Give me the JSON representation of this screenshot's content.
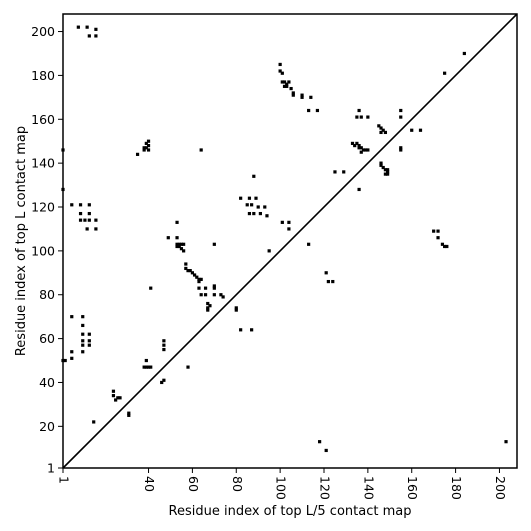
{
  "chart_data": {
    "type": "scatter",
    "xlabel": "Residue index of top L/5 contact map",
    "ylabel": "Residue index of top L contact map",
    "xlim": [
      1,
      208
    ],
    "ylim": [
      1,
      208
    ],
    "x_ticks": [
      1,
      40,
      60,
      80,
      100,
      120,
      140,
      160,
      180,
      200
    ],
    "y_ticks": [
      1,
      20,
      40,
      60,
      80,
      100,
      120,
      140,
      160,
      180,
      200
    ],
    "x_tick_labels": [
      "1",
      "40",
      "60",
      "80",
      "100",
      "120",
      "140",
      "160",
      "180",
      "200"
    ],
    "y_tick_labels": [
      "1",
      "20",
      "40",
      "60",
      "80",
      "100",
      "120",
      "140",
      "160",
      "180",
      "200"
    ],
    "grid": false,
    "diagonal": [
      [
        1,
        1
      ],
      [
        208,
        208
      ]
    ],
    "marker": "square",
    "marker_color": "#000000",
    "line_color": "#000000",
    "points": [
      [
        8,
        202
      ],
      [
        12,
        202
      ],
      [
        13,
        198
      ],
      [
        16,
        198
      ],
      [
        16,
        201
      ],
      [
        1,
        146
      ],
      [
        1,
        128
      ],
      [
        5,
        121
      ],
      [
        9,
        121
      ],
      [
        13,
        121
      ],
      [
        9,
        117
      ],
      [
        9,
        114
      ],
      [
        11,
        114
      ],
      [
        13,
        114
      ],
      [
        13,
        117
      ],
      [
        16,
        114
      ],
      [
        16,
        110
      ],
      [
        12,
        110
      ],
      [
        5,
        70
      ],
      [
        10,
        70
      ],
      [
        10,
        66
      ],
      [
        10,
        62
      ],
      [
        13,
        62
      ],
      [
        13,
        59
      ],
      [
        13,
        57
      ],
      [
        10,
        59
      ],
      [
        10,
        57
      ],
      [
        10,
        54
      ],
      [
        5,
        54
      ],
      [
        5,
        51
      ],
      [
        1,
        50
      ],
      [
        2,
        50
      ],
      [
        15,
        22
      ],
      [
        24,
        36
      ],
      [
        24,
        34
      ],
      [
        26,
        33
      ],
      [
        25,
        32
      ],
      [
        27,
        33
      ],
      [
        31,
        26
      ],
      [
        31,
        25
      ],
      [
        35,
        144
      ],
      [
        38,
        147
      ],
      [
        39,
        147
      ],
      [
        40,
        148
      ],
      [
        39,
        149
      ],
      [
        40,
        150
      ],
      [
        38,
        146
      ],
      [
        40,
        146
      ],
      [
        41,
        83
      ],
      [
        38,
        47
      ],
      [
        39,
        47
      ],
      [
        40,
        47
      ],
      [
        41,
        47
      ],
      [
        39,
        50
      ],
      [
        46,
        40
      ],
      [
        47,
        41
      ],
      [
        47,
        59
      ],
      [
        47,
        57
      ],
      [
        47,
        55
      ],
      [
        49,
        106
      ],
      [
        53,
        106
      ],
      [
        53,
        113
      ],
      [
        53,
        103
      ],
      [
        54,
        103
      ],
      [
        55,
        103
      ],
      [
        53,
        102
      ],
      [
        54,
        102
      ],
      [
        55,
        101
      ],
      [
        56,
        100
      ],
      [
        56,
        103
      ],
      [
        57,
        94
      ],
      [
        57,
        92
      ],
      [
        58,
        91
      ],
      [
        59,
        91
      ],
      [
        60,
        90
      ],
      [
        61,
        89
      ],
      [
        62,
        88
      ],
      [
        63,
        87
      ],
      [
        64,
        87
      ],
      [
        63,
        86
      ],
      [
        63,
        83
      ],
      [
        64,
        80
      ],
      [
        66,
        80
      ],
      [
        66,
        83
      ],
      [
        67,
        76
      ],
      [
        68,
        75
      ],
      [
        67,
        74
      ],
      [
        67,
        73
      ],
      [
        70,
        80
      ],
      [
        70,
        84
      ],
      [
        70,
        83
      ],
      [
        73,
        80
      ],
      [
        74,
        79
      ],
      [
        58,
        47
      ],
      [
        64,
        146
      ],
      [
        70,
        103
      ],
      [
        80,
        74
      ],
      [
        80,
        73
      ],
      [
        82,
        124
      ],
      [
        86,
        124
      ],
      [
        89,
        124
      ],
      [
        85,
        121
      ],
      [
        87,
        121
      ],
      [
        90,
        120
      ],
      [
        93,
        120
      ],
      [
        86,
        117
      ],
      [
        88,
        117
      ],
      [
        91,
        117
      ],
      [
        94,
        116
      ],
      [
        88,
        134
      ],
      [
        95,
        100
      ],
      [
        82,
        64
      ],
      [
        87,
        64
      ],
      [
        100,
        185
      ],
      [
        100,
        182
      ],
      [
        101,
        181
      ],
      [
        101,
        177
      ],
      [
        102,
        177
      ],
      [
        102,
        175
      ],
      [
        103,
        176
      ],
      [
        104,
        177
      ],
      [
        103,
        175
      ],
      [
        105,
        174
      ],
      [
        106,
        172
      ],
      [
        106,
        171
      ],
      [
        110,
        171
      ],
      [
        110,
        170
      ],
      [
        114,
        170
      ],
      [
        113,
        164
      ],
      [
        117,
        164
      ],
      [
        101,
        113
      ],
      [
        104,
        113
      ],
      [
        104,
        110
      ],
      [
        113,
        103
      ],
      [
        118,
        13
      ],
      [
        121,
        9
      ],
      [
        121,
        90
      ],
      [
        122,
        86
      ],
      [
        124,
        86
      ],
      [
        125,
        136
      ],
      [
        129,
        136
      ],
      [
        133,
        149
      ],
      [
        135,
        149
      ],
      [
        134,
        148
      ],
      [
        136,
        148
      ],
      [
        137,
        147
      ],
      [
        138,
        146
      ],
      [
        139,
        146
      ],
      [
        140,
        146
      ],
      [
        136,
        147
      ],
      [
        137,
        145
      ],
      [
        136,
        164
      ],
      [
        135,
        161
      ],
      [
        137,
        161
      ],
      [
        140,
        161
      ],
      [
        136,
        128
      ],
      [
        145,
        157
      ],
      [
        146,
        156
      ],
      [
        147,
        155
      ],
      [
        148,
        154
      ],
      [
        146,
        154
      ],
      [
        146,
        140
      ],
      [
        146,
        139
      ],
      [
        147,
        138
      ],
      [
        148,
        137
      ],
      [
        149,
        137
      ],
      [
        149,
        136
      ],
      [
        148,
        135
      ],
      [
        149,
        135
      ],
      [
        155,
        164
      ],
      [
        155,
        161
      ],
      [
        155,
        147
      ],
      [
        155,
        146
      ],
      [
        160,
        155
      ],
      [
        164,
        155
      ],
      [
        170,
        109
      ],
      [
        172,
        109
      ],
      [
        172,
        106
      ],
      [
        174,
        103
      ],
      [
        175,
        102
      ],
      [
        176,
        102
      ],
      [
        175,
        181
      ],
      [
        184,
        190
      ],
      [
        203,
        13
      ]
    ]
  }
}
